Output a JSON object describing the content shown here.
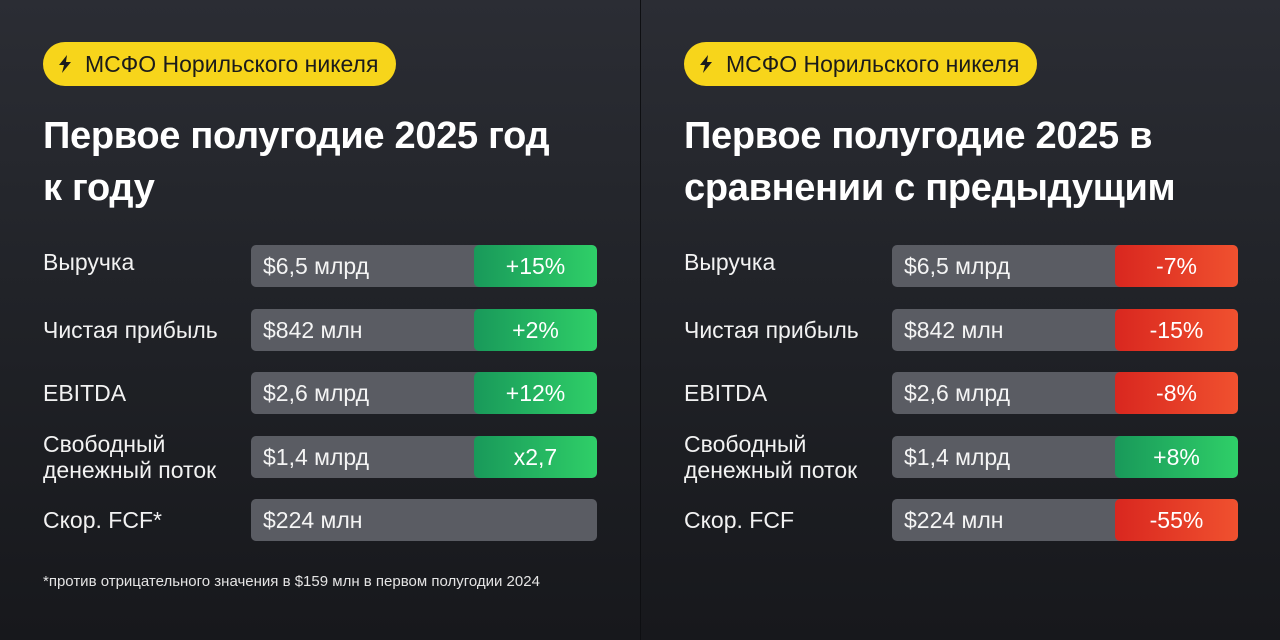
{
  "colors": {
    "badge": "#f7d51b",
    "bar": "#5a5c63",
    "up": "#2fcf68",
    "down": "#e8402a",
    "text": "#ffffff"
  },
  "left": {
    "badge": "МСФО Норильского никеля",
    "title_line1": "Первое полугодие 2025 год",
    "title_line2": "к году",
    "rows": [
      {
        "label": "Выручка",
        "value": "$6,5 млрд",
        "change": "+15%",
        "dir": "up"
      },
      {
        "label": "Чистая прибыль",
        "value": "$842 млн",
        "change": "+2%",
        "dir": "up"
      },
      {
        "label": "EBITDA",
        "value": "$2,6 млрд",
        "change": "+12%",
        "dir": "up"
      },
      {
        "label_line1": "Свободный",
        "label_line2": "денежный поток",
        "value": "$1,4 млрд",
        "change": "x2,7",
        "dir": "up"
      },
      {
        "label": "Скор. FCF*",
        "value": "$224 млн"
      }
    ],
    "footnote": "*против отрицательного значения в $159 млн в первом полугодии 2024"
  },
  "right": {
    "badge": "МСФО Норильского никеля",
    "title_line1": "Первое полугодие 2025 в",
    "title_line2": "сравнении с предыдущим",
    "rows": [
      {
        "label": "Выручка",
        "value": "$6,5 млрд",
        "change": "-7%",
        "dir": "down"
      },
      {
        "label": "Чистая прибыль",
        "value": "$842 млн",
        "change": "-15%",
        "dir": "down"
      },
      {
        "label": "EBITDA",
        "value": "$2,6 млрд",
        "change": "-8%",
        "dir": "down"
      },
      {
        "label_line1": "Свободный",
        "label_line2": "денежный поток",
        "value": "$1,4 млрд",
        "change": "+8%",
        "dir": "up"
      },
      {
        "label": "Скор. FCF",
        "value": "$224 млн",
        "change": "-55%",
        "dir": "down"
      }
    ]
  }
}
